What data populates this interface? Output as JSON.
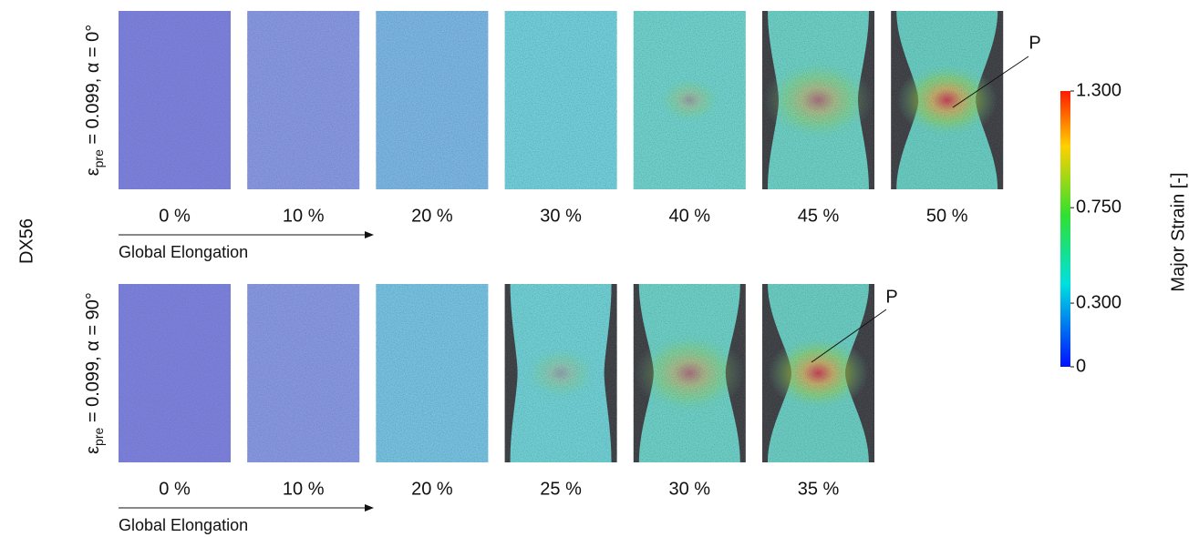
{
  "material": "DX56",
  "rows": [
    {
      "label": {
        "symbol": "ε",
        "subscript": "pre",
        "rest": " = 0.099, α = 0°"
      },
      "panels": [
        "0 %",
        "10 %",
        "20 %",
        "30 %",
        "40 %",
        "45 %",
        "50 %"
      ],
      "arrow_label": "Global Elongation",
      "marker": "P"
    },
    {
      "label": {
        "symbol": "ε",
        "subscript": "pre",
        "rest": " = 0.099, α = 90°"
      },
      "panels": [
        "0 %",
        "10 %",
        "20 %",
        "25 %",
        "30 %",
        "35 %"
      ],
      "arrow_label": "Global Elongation",
      "marker": "P"
    }
  ],
  "colorbar": {
    "title": "Major Strain [-]",
    "lim": [
      0,
      1.3
    ],
    "ticks": [
      {
        "value": 1.3,
        "label": "1.300"
      },
      {
        "value": 0.75,
        "label": "0.750"
      },
      {
        "value": 0.3,
        "label": "0.300"
      },
      0
    ]
  }
}
